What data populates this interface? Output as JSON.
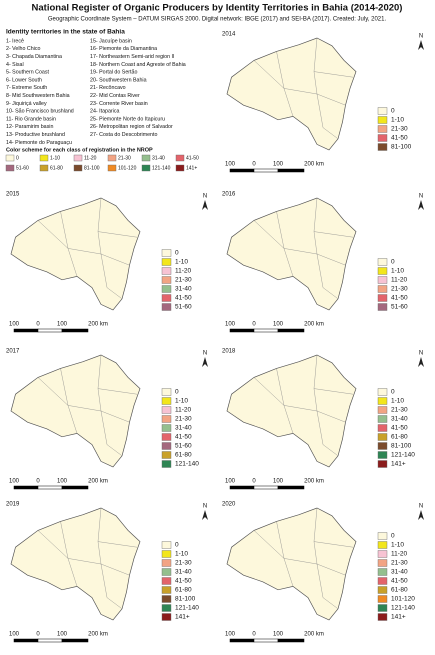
{
  "title": "National Register of Organic Producers by Identity Territories in Bahia (2014-2020)",
  "subtitle": "Geographic Coordinate System – DATUM SIRGAS 2000. Digital network: IBGE (2017) and SEI-BA (2017). Created: July, 2021.",
  "territories": {
    "heading": "Identity territories in the state of Bahia",
    "items": [
      "1- Irecê",
      "2- Velho Chico",
      "3- Chapada Diamantina",
      "4- Sisal",
      "5- Southern Coast",
      "6- Lower South",
      "7- Extreme South",
      "8- Mid Southwestern Bahia",
      "9- Jiquiriçá valley",
      "10- São Francisco brushland",
      "11- Rio Grande basin",
      "12- Paramirim basin",
      "13- Productive brushland",
      "14- Piemonte do Paraguaçu",
      "15- Jacuípe basin",
      "16- Piemonte da Diamantina",
      "17- Northeastern Semi-arid region II",
      "18- Northern Coast and Agreste of Bahia",
      "19- Portal do Sertão",
      "20- Southwestern Bahia",
      "21- Recôncavo",
      "22- Mid Contas River",
      "23- Corrente River basin",
      "24- Itaparica",
      "25- Piemonte Norte do Itapicuru",
      "26- Metropolitan region of Salvador",
      "27- Costa do Descobrimento"
    ]
  },
  "color_scheme": {
    "heading": "Color scheme for each class of registration in the NROP",
    "classes": [
      {
        "label": "0",
        "color": "#fdf8dc"
      },
      {
        "label": "1-10",
        "color": "#f2e61c"
      },
      {
        "label": "11-20",
        "color": "#f7c3d3"
      },
      {
        "label": "21-30",
        "color": "#f2a484"
      },
      {
        "label": "31-40",
        "color": "#94bf8e"
      },
      {
        "label": "41-50",
        "color": "#e3646b"
      },
      {
        "label": "51-60",
        "color": "#a4687e"
      },
      {
        "label": "61-80",
        "color": "#c9a12a"
      },
      {
        "label": "81-100",
        "color": "#7b4b2c"
      },
      {
        "label": "101-120",
        "color": "#f08a24"
      },
      {
        "label": "121-140",
        "color": "#2e8554"
      },
      {
        "label": "141+",
        "color": "#8b1c1c"
      }
    ]
  },
  "maps": [
    {
      "year": "2014",
      "legend": [
        {
          "label": "0",
          "color": "#fdf8dc"
        },
        {
          "label": "1-10",
          "color": "#f2e61c"
        },
        {
          "label": "21-30",
          "color": "#f2a484"
        },
        {
          "label": "41-50",
          "color": "#e3646b"
        },
        {
          "label": "81-100",
          "color": "#7b4b2c"
        }
      ],
      "scale": [
        "100",
        "0",
        "100",
        "200 km"
      ],
      "north": "N"
    },
    {
      "year": "2015",
      "legend": [
        {
          "label": "0",
          "color": "#fdf8dc"
        },
        {
          "label": "1-10",
          "color": "#f2e61c"
        },
        {
          "label": "11-20",
          "color": "#f7c3d3"
        },
        {
          "label": "21-30",
          "color": "#f2a484"
        },
        {
          "label": "31-40",
          "color": "#94bf8e"
        },
        {
          "label": "41-50",
          "color": "#e3646b"
        },
        {
          "label": "51-60",
          "color": "#a4687e"
        }
      ],
      "scale": [
        "100",
        "0",
        "100",
        "200 km"
      ],
      "north": "N"
    },
    {
      "year": "2016",
      "legend": [
        {
          "label": "0",
          "color": "#fdf8dc"
        },
        {
          "label": "1-10",
          "color": "#f2e61c"
        },
        {
          "label": "11-20",
          "color": "#f7c3d3"
        },
        {
          "label": "21-30",
          "color": "#f2a484"
        },
        {
          "label": "41-50",
          "color": "#e3646b"
        },
        {
          "label": "51-60",
          "color": "#a4687e"
        }
      ],
      "scale": [
        "100",
        "0",
        "100",
        "200 km"
      ],
      "north": "N"
    },
    {
      "year": "2017",
      "legend": [
        {
          "label": "0",
          "color": "#fdf8dc"
        },
        {
          "label": "1-10",
          "color": "#f2e61c"
        },
        {
          "label": "11-20",
          "color": "#f7c3d3"
        },
        {
          "label": "21-30",
          "color": "#f2a484"
        },
        {
          "label": "31-40",
          "color": "#94bf8e"
        },
        {
          "label": "41-50",
          "color": "#e3646b"
        },
        {
          "label": "51-60",
          "color": "#a4687e"
        },
        {
          "label": "61-80",
          "color": "#c9a12a"
        },
        {
          "label": "121-140",
          "color": "#2e8554"
        }
      ],
      "scale": [
        "100",
        "0",
        "100",
        "200 km"
      ],
      "north": "N"
    },
    {
      "year": "2018",
      "legend": [
        {
          "label": "0",
          "color": "#fdf8dc"
        },
        {
          "label": "1-10",
          "color": "#f2e61c"
        },
        {
          "label": "21-30",
          "color": "#f2a484"
        },
        {
          "label": "31-40",
          "color": "#94bf8e"
        },
        {
          "label": "41-50",
          "color": "#e3646b"
        },
        {
          "label": "61-80",
          "color": "#c9a12a"
        },
        {
          "label": "81-100",
          "color": "#7b4b2c"
        },
        {
          "label": "121-140",
          "color": "#2e8554"
        },
        {
          "label": "141+",
          "color": "#8b1c1c"
        }
      ],
      "scale": [
        "100",
        "0",
        "100",
        "200 km"
      ],
      "north": "N"
    },
    {
      "year": "2019",
      "legend": [
        {
          "label": "0",
          "color": "#fdf8dc"
        },
        {
          "label": "1-10",
          "color": "#f2e61c"
        },
        {
          "label": "21-30",
          "color": "#f2a484"
        },
        {
          "label": "31-40",
          "color": "#94bf8e"
        },
        {
          "label": "41-50",
          "color": "#e3646b"
        },
        {
          "label": "61-80",
          "color": "#c9a12a"
        },
        {
          "label": "81-100",
          "color": "#7b4b2c"
        },
        {
          "label": "121-140",
          "color": "#2e8554"
        },
        {
          "label": "141+",
          "color": "#8b1c1c"
        }
      ],
      "scale": [
        "100",
        "0",
        "100",
        "200 km"
      ],
      "north": "N"
    },
    {
      "year": "2020",
      "legend": [
        {
          "label": "0",
          "color": "#fdf8dc"
        },
        {
          "label": "1-10",
          "color": "#f2e61c"
        },
        {
          "label": "11-20",
          "color": "#f7c3d3"
        },
        {
          "label": "21-30",
          "color": "#f2a484"
        },
        {
          "label": "31-40",
          "color": "#94bf8e"
        },
        {
          "label": "41-50",
          "color": "#e3646b"
        },
        {
          "label": "61-80",
          "color": "#c9a12a"
        },
        {
          "label": "101-120",
          "color": "#f08a24"
        },
        {
          "label": "121-140",
          "color": "#2e8554"
        },
        {
          "label": "141+",
          "color": "#8b1c1c"
        }
      ],
      "scale": [
        "100",
        "0",
        "100",
        "200 km"
      ],
      "north": "N"
    }
  ]
}
